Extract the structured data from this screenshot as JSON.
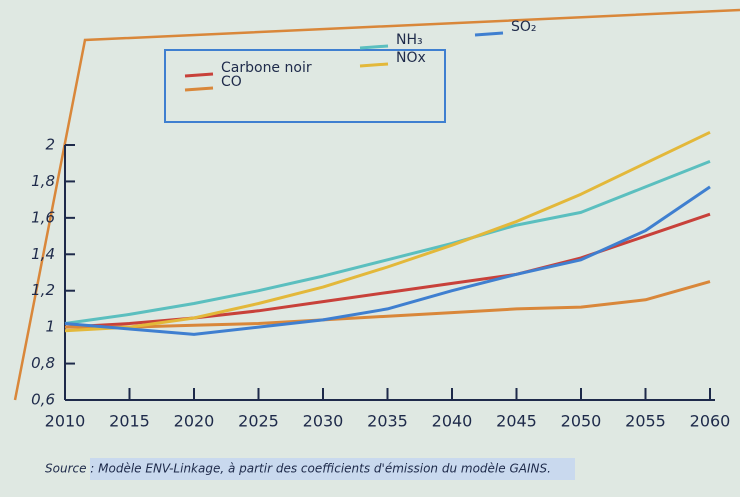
{
  "chart_data": {
    "type": "line",
    "x": [
      2010,
      2015,
      2020,
      2025,
      2030,
      2035,
      2040,
      2045,
      2050,
      2055,
      2060
    ],
    "xlim": [
      2010,
      2060
    ],
    "xticks": [
      2010,
      2015,
      2020,
      2025,
      2030,
      2035,
      2040,
      2045,
      2050,
      2055,
      2060
    ],
    "ylim": [
      0.6,
      2
    ],
    "yticks": [
      {
        "value": 0.6,
        "label": "0,6"
      },
      {
        "value": 0.8,
        "label": "0,8"
      },
      1,
      {
        "value": 1.2,
        "label": "1,2"
      },
      {
        "value": 1.4,
        "label": "1,4"
      },
      {
        "value": 1.6,
        "label": "1,6"
      },
      {
        "value": 1.8,
        "label": "1,8"
      },
      2
    ],
    "series": [
      {
        "name": "Carbone noir",
        "color": "#c8413a",
        "values": [
          1.0,
          1.02,
          1.05,
          1.09,
          1.14,
          1.19,
          1.24,
          1.29,
          1.38,
          1.5,
          1.62
        ]
      },
      {
        "name": "CO",
        "color": "#d9873a",
        "values": [
          1.0,
          1.0,
          1.01,
          1.02,
          1.04,
          1.06,
          1.08,
          1.1,
          1.11,
          1.15,
          1.25
        ]
      },
      {
        "name": "NH₃",
        "color": "#5bbfbf",
        "values": [
          1.02,
          1.07,
          1.13,
          1.2,
          1.28,
          1.37,
          1.46,
          1.56,
          1.63,
          1.77,
          1.91
        ]
      },
      {
        "name": "NOx",
        "color": "#e3b83a",
        "values": [
          0.98,
          1.0,
          1.05,
          1.13,
          1.22,
          1.33,
          1.45,
          1.58,
          1.73,
          1.9,
          2.07
        ]
      },
      {
        "name": "SO₂",
        "color": "#3f7fd0",
        "values": [
          1.02,
          0.99,
          0.96,
          1.0,
          1.04,
          1.1,
          1.2,
          1.29,
          1.37,
          1.53,
          1.77
        ]
      }
    ],
    "source": "Source : Modèle ENV-Linkage, à partir des coefficients d'émission du modèle GAINS."
  }
}
